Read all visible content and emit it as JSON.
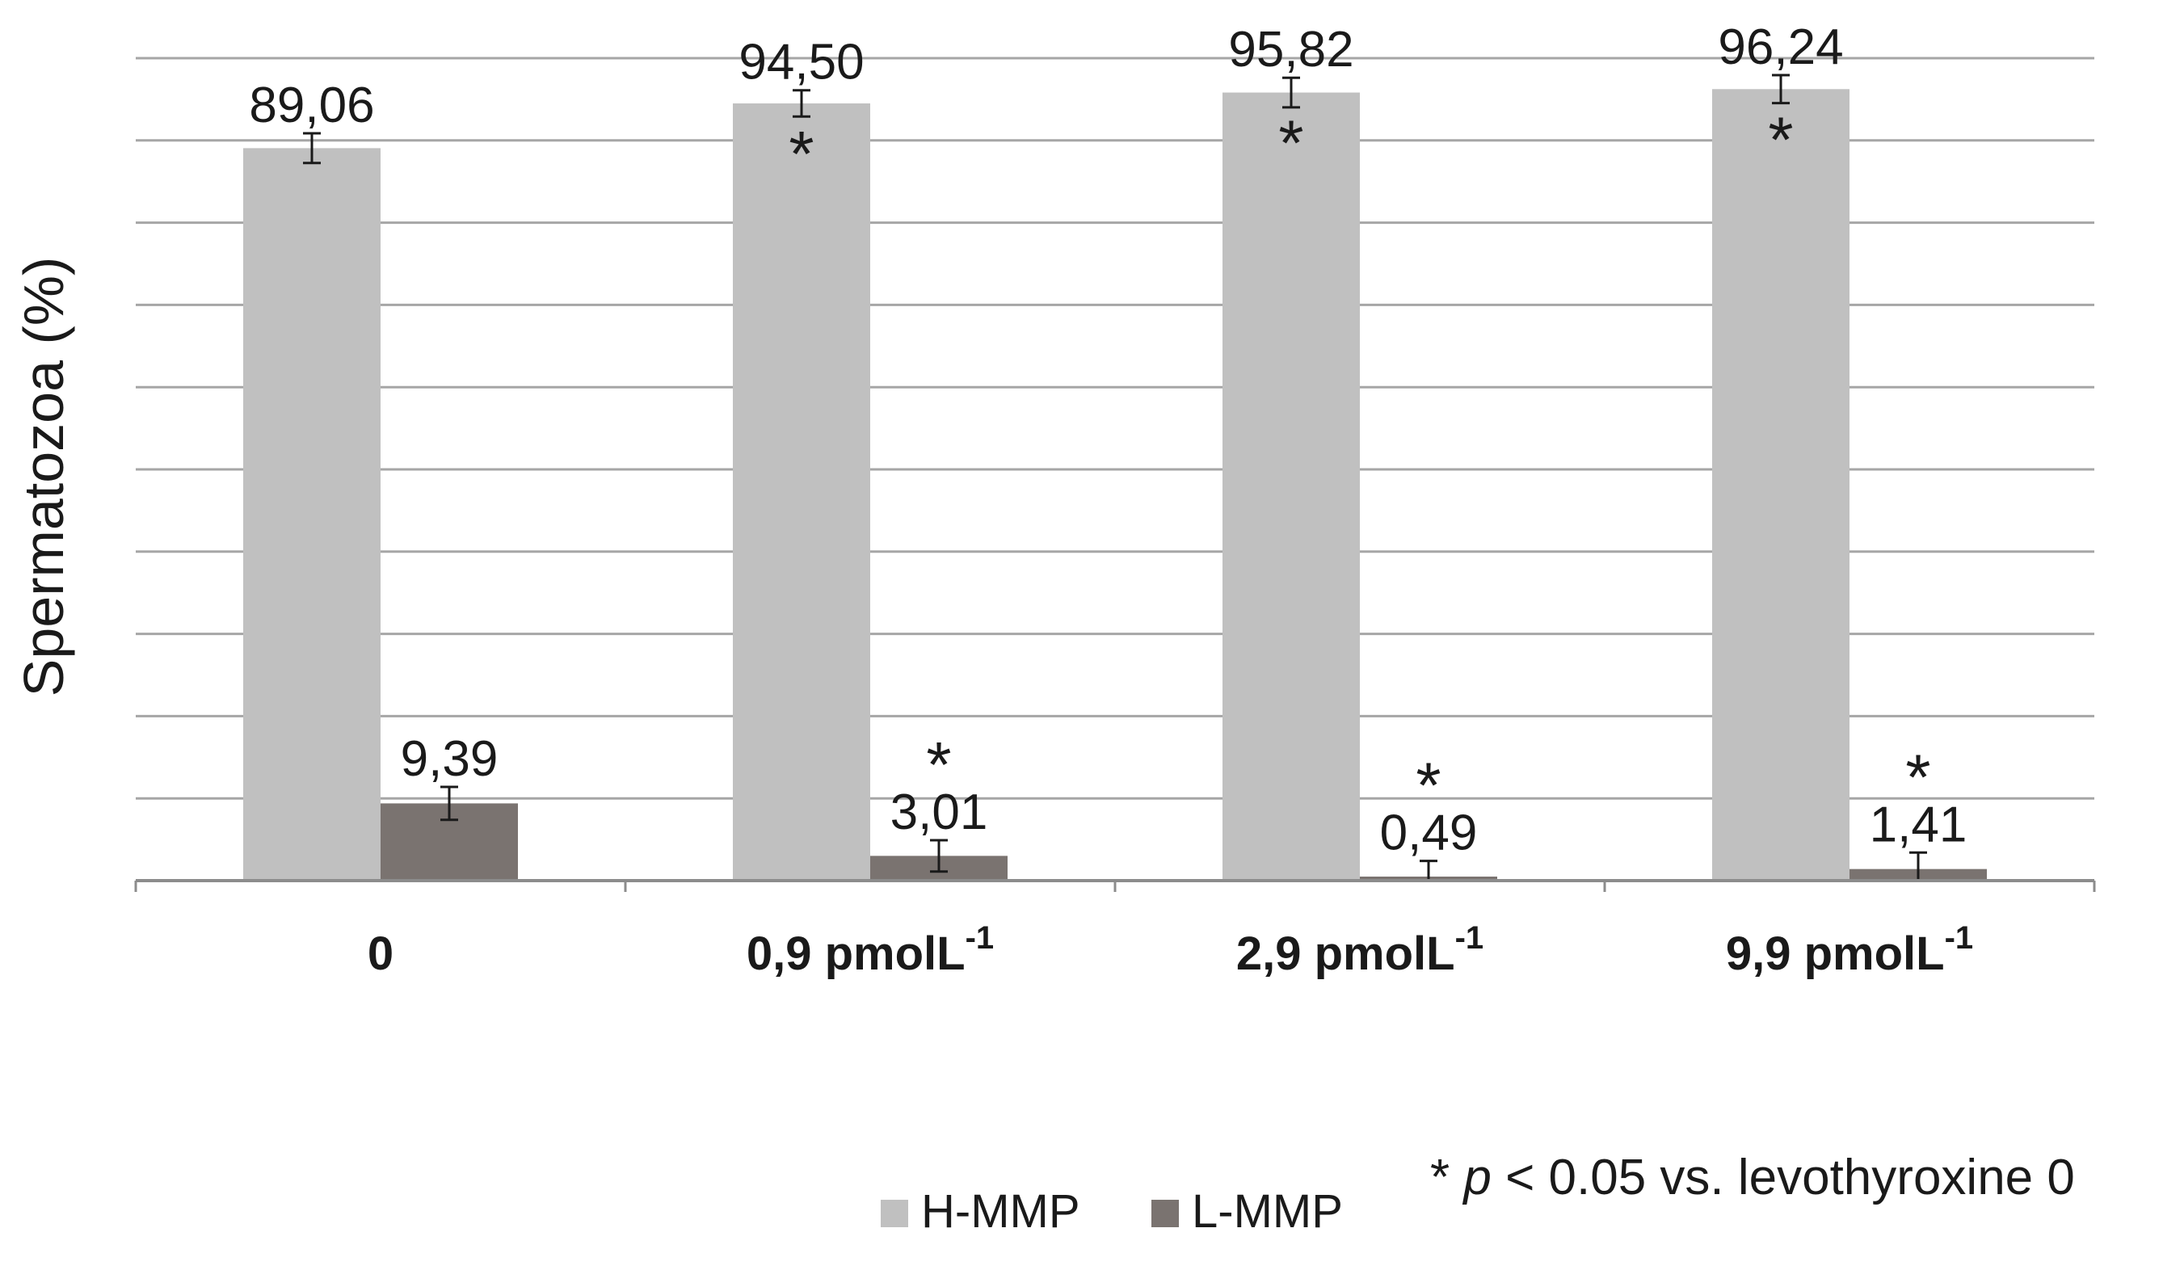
{
  "chart_data": {
    "type": "bar",
    "title": "",
    "ylabel": "Spermatozoa (%)",
    "xlabel": "",
    "ylim": [
      0,
      100
    ],
    "y_tick_step": 10,
    "grid": true,
    "y_tick_labels_shown": false,
    "legend_position": "bottom",
    "categories": [
      {
        "base": "0",
        "sup": ""
      },
      {
        "base": "0,9 pmolL",
        "sup": "-1"
      },
      {
        "base": "2,9 pmolL",
        "sup": "-1"
      },
      {
        "base": "9,9 pmolL",
        "sup": "-1"
      }
    ],
    "series": [
      {
        "name": "H-MMP",
        "color": "#c0c0c0",
        "values": [
          89.06,
          94.5,
          95.82,
          96.24
        ],
        "labels": [
          "89,06",
          "94,50",
          "95,82",
          "96,24"
        ],
        "errors": [
          1.8,
          1.6,
          1.8,
          1.7
        ],
        "significant": [
          false,
          true,
          true,
          true
        ]
      },
      {
        "name": "L-MMP",
        "color": "#7a7370",
        "values": [
          9.39,
          3.01,
          0.49,
          1.41
        ],
        "labels": [
          "9,39",
          "3,01",
          "0,49",
          "1,41"
        ],
        "errors": [
          2.0,
          1.9,
          1.9,
          2.0
        ],
        "significant": [
          false,
          true,
          true,
          true
        ]
      }
    ],
    "significance_marker": "*",
    "note": {
      "prefix": "* ",
      "p": "p",
      "suffix": " < 0.05 vs. levothyroxine 0"
    }
  }
}
